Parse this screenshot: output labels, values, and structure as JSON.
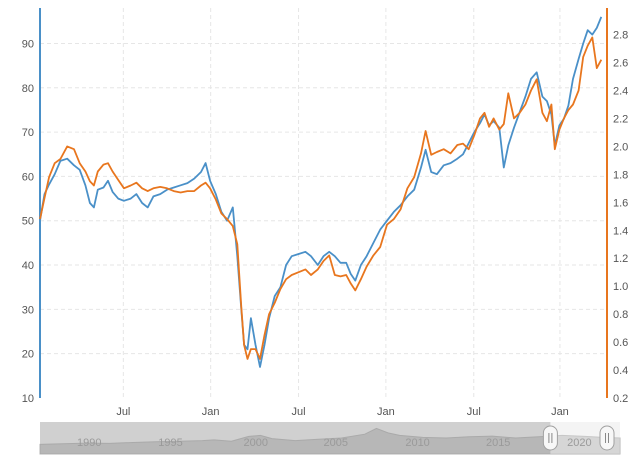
{
  "chart_data": {
    "type": "line",
    "title": "",
    "xlabel": "",
    "grid": true,
    "left_axis": {
      "ylim": [
        10,
        98
      ],
      "ticks": [
        "10",
        "20",
        "30",
        "40",
        "50",
        "60",
        "70",
        "80",
        "90"
      ],
      "color": "#4a90c8"
    },
    "right_axis": {
      "ylim": [
        0.2,
        2.99
      ],
      "ticks": [
        "0.2",
        "0.4",
        "0.6",
        "0.8",
        "1.0",
        "1.2",
        "1.4",
        "1.6",
        "1.8",
        "2.0",
        "2.2",
        "2.4",
        "2.6",
        "2.8"
      ],
      "color": "#e8761e"
    },
    "x_ticks": [
      {
        "label": "Jul",
        "t": 0.147
      },
      {
        "label": "Jan",
        "t": 0.301
      },
      {
        "label": "Jul",
        "t": 0.456
      },
      {
        "label": "Jan",
        "t": 0.61
      },
      {
        "label": "Jul",
        "t": 0.765
      },
      {
        "label": "Jan",
        "t": 0.917
      }
    ],
    "series": [
      {
        "axis": "left",
        "color": "#4a90c8",
        "points": [
          [
            0.0,
            50.0
          ],
          [
            0.008,
            56.0
          ],
          [
            0.016,
            58.2
          ],
          [
            0.026,
            60.5
          ],
          [
            0.036,
            63.5
          ],
          [
            0.048,
            64.0
          ],
          [
            0.06,
            62.5
          ],
          [
            0.07,
            61.5
          ],
          [
            0.08,
            58.0
          ],
          [
            0.088,
            54.0
          ],
          [
            0.095,
            53.0
          ],
          [
            0.102,
            57.0
          ],
          [
            0.112,
            57.5
          ],
          [
            0.12,
            59.0
          ],
          [
            0.128,
            56.5
          ],
          [
            0.138,
            55.0
          ],
          [
            0.148,
            54.5
          ],
          [
            0.16,
            55.0
          ],
          [
            0.17,
            56.0
          ],
          [
            0.18,
            54.0
          ],
          [
            0.19,
            53.0
          ],
          [
            0.2,
            55.5
          ],
          [
            0.212,
            56.0
          ],
          [
            0.224,
            57.0
          ],
          [
            0.236,
            57.5
          ],
          [
            0.248,
            58.0
          ],
          [
            0.26,
            58.5
          ],
          [
            0.272,
            59.5
          ],
          [
            0.284,
            61.0
          ],
          [
            0.292,
            63.0
          ],
          [
            0.3,
            59.0
          ],
          [
            0.31,
            56.0
          ],
          [
            0.32,
            52.0
          ],
          [
            0.33,
            50.0
          ],
          [
            0.34,
            53.0
          ],
          [
            0.348,
            42.0
          ],
          [
            0.355,
            30.0
          ],
          [
            0.36,
            22.0
          ],
          [
            0.366,
            21.0
          ],
          [
            0.372,
            28.0
          ],
          [
            0.38,
            22.0
          ],
          [
            0.388,
            17.0
          ],
          [
            0.396,
            22.0
          ],
          [
            0.404,
            28.0
          ],
          [
            0.414,
            33.0
          ],
          [
            0.424,
            35.0
          ],
          [
            0.434,
            40.0
          ],
          [
            0.444,
            42.0
          ],
          [
            0.456,
            42.5
          ],
          [
            0.468,
            43.0
          ],
          [
            0.478,
            42.0
          ],
          [
            0.49,
            40.0
          ],
          [
            0.5,
            42.0
          ],
          [
            0.51,
            43.0
          ],
          [
            0.52,
            42.0
          ],
          [
            0.53,
            40.5
          ],
          [
            0.54,
            40.5
          ],
          [
            0.548,
            38.0
          ],
          [
            0.556,
            36.5
          ],
          [
            0.566,
            40.0
          ],
          [
            0.576,
            42.0
          ],
          [
            0.588,
            45.0
          ],
          [
            0.6,
            48.0
          ],
          [
            0.612,
            50.0
          ],
          [
            0.624,
            52.0
          ],
          [
            0.636,
            53.5
          ],
          [
            0.648,
            55.5
          ],
          [
            0.66,
            57.0
          ],
          [
            0.672,
            62.0
          ],
          [
            0.68,
            66.0
          ],
          [
            0.69,
            61.0
          ],
          [
            0.7,
            60.5
          ],
          [
            0.712,
            62.5
          ],
          [
            0.724,
            63.0
          ],
          [
            0.736,
            64.0
          ],
          [
            0.746,
            65.0
          ],
          [
            0.756,
            67.5
          ],
          [
            0.766,
            70.0
          ],
          [
            0.776,
            72.0
          ],
          [
            0.784,
            74.0
          ],
          [
            0.792,
            71.5
          ],
          [
            0.8,
            72.5
          ],
          [
            0.81,
            71.0
          ],
          [
            0.818,
            62.0
          ],
          [
            0.826,
            67.0
          ],
          [
            0.836,
            71.0
          ],
          [
            0.846,
            74.5
          ],
          [
            0.856,
            78.0
          ],
          [
            0.866,
            82.0
          ],
          [
            0.876,
            83.5
          ],
          [
            0.886,
            78.0
          ],
          [
            0.894,
            77.0
          ],
          [
            0.902,
            74.0
          ],
          [
            0.908,
            67.0
          ],
          [
            0.916,
            71.5
          ],
          [
            0.924,
            73.0
          ],
          [
            0.932,
            76.0
          ],
          [
            0.94,
            82.0
          ],
          [
            0.95,
            86.5
          ],
          [
            0.958,
            90.0
          ],
          [
            0.966,
            93.0
          ],
          [
            0.974,
            92.0
          ],
          [
            0.982,
            93.5
          ],
          [
            0.99,
            96.0
          ]
        ]
      },
      {
        "axis": "right",
        "color": "#e8761e",
        "points": [
          [
            0.0,
            1.48
          ],
          [
            0.008,
            1.63
          ],
          [
            0.016,
            1.78
          ],
          [
            0.026,
            1.88
          ],
          [
            0.036,
            1.91
          ],
          [
            0.048,
            2.0
          ],
          [
            0.06,
            1.98
          ],
          [
            0.07,
            1.88
          ],
          [
            0.08,
            1.82
          ],
          [
            0.088,
            1.75
          ],
          [
            0.095,
            1.72
          ],
          [
            0.102,
            1.82
          ],
          [
            0.112,
            1.87
          ],
          [
            0.12,
            1.88
          ],
          [
            0.128,
            1.82
          ],
          [
            0.138,
            1.76
          ],
          [
            0.148,
            1.7
          ],
          [
            0.16,
            1.72
          ],
          [
            0.17,
            1.74
          ],
          [
            0.18,
            1.7
          ],
          [
            0.19,
            1.68
          ],
          [
            0.2,
            1.7
          ],
          [
            0.212,
            1.71
          ],
          [
            0.224,
            1.7
          ],
          [
            0.236,
            1.68
          ],
          [
            0.248,
            1.67
          ],
          [
            0.26,
            1.68
          ],
          [
            0.272,
            1.68
          ],
          [
            0.284,
            1.72
          ],
          [
            0.292,
            1.74
          ],
          [
            0.3,
            1.7
          ],
          [
            0.31,
            1.62
          ],
          [
            0.32,
            1.52
          ],
          [
            0.33,
            1.48
          ],
          [
            0.34,
            1.43
          ],
          [
            0.348,
            1.3
          ],
          [
            0.355,
            0.85
          ],
          [
            0.36,
            0.58
          ],
          [
            0.366,
            0.48
          ],
          [
            0.372,
            0.55
          ],
          [
            0.38,
            0.55
          ],
          [
            0.388,
            0.48
          ],
          [
            0.396,
            0.65
          ],
          [
            0.404,
            0.8
          ],
          [
            0.414,
            0.88
          ],
          [
            0.424,
            0.98
          ],
          [
            0.434,
            1.05
          ],
          [
            0.444,
            1.08
          ],
          [
            0.456,
            1.1
          ],
          [
            0.468,
            1.12
          ],
          [
            0.478,
            1.08
          ],
          [
            0.49,
            1.12
          ],
          [
            0.5,
            1.18
          ],
          [
            0.51,
            1.22
          ],
          [
            0.52,
            1.08
          ],
          [
            0.53,
            1.07
          ],
          [
            0.54,
            1.08
          ],
          [
            0.548,
            1.02
          ],
          [
            0.556,
            0.97
          ],
          [
            0.566,
            1.05
          ],
          [
            0.576,
            1.14
          ],
          [
            0.588,
            1.22
          ],
          [
            0.6,
            1.28
          ],
          [
            0.612,
            1.44
          ],
          [
            0.624,
            1.48
          ],
          [
            0.636,
            1.55
          ],
          [
            0.648,
            1.7
          ],
          [
            0.66,
            1.78
          ],
          [
            0.672,
            1.95
          ],
          [
            0.68,
            2.11
          ],
          [
            0.69,
            1.94
          ],
          [
            0.7,
            1.96
          ],
          [
            0.712,
            1.98
          ],
          [
            0.724,
            1.95
          ],
          [
            0.736,
            2.01
          ],
          [
            0.746,
            2.02
          ],
          [
            0.756,
            1.98
          ],
          [
            0.766,
            2.08
          ],
          [
            0.776,
            2.2
          ],
          [
            0.784,
            2.24
          ],
          [
            0.792,
            2.14
          ],
          [
            0.8,
            2.2
          ],
          [
            0.81,
            2.12
          ],
          [
            0.818,
            2.16
          ],
          [
            0.826,
            2.38
          ],
          [
            0.836,
            2.2
          ],
          [
            0.846,
            2.24
          ],
          [
            0.856,
            2.3
          ],
          [
            0.866,
            2.4
          ],
          [
            0.876,
            2.48
          ],
          [
            0.886,
            2.24
          ],
          [
            0.894,
            2.18
          ],
          [
            0.902,
            2.3
          ],
          [
            0.908,
            1.98
          ],
          [
            0.916,
            2.12
          ],
          [
            0.924,
            2.2
          ],
          [
            0.932,
            2.26
          ],
          [
            0.94,
            2.3
          ],
          [
            0.95,
            2.4
          ],
          [
            0.958,
            2.64
          ],
          [
            0.966,
            2.72
          ],
          [
            0.974,
            2.78
          ],
          [
            0.982,
            2.56
          ],
          [
            0.99,
            2.62
          ]
        ]
      }
    ]
  },
  "navigator": {
    "labels": [
      {
        "text": "1990",
        "t": 0.085
      },
      {
        "text": "1995",
        "t": 0.225
      },
      {
        "text": "2000",
        "t": 0.372
      },
      {
        "text": "2005",
        "t": 0.51
      },
      {
        "text": "2010",
        "t": 0.651
      },
      {
        "text": "2015",
        "t": 0.79
      },
      {
        "text": "2020",
        "t": 0.93
      }
    ],
    "profile": [
      [
        0.0,
        0.3
      ],
      [
        0.04,
        0.32
      ],
      [
        0.08,
        0.34
      ],
      [
        0.12,
        0.33
      ],
      [
        0.16,
        0.36
      ],
      [
        0.2,
        0.38
      ],
      [
        0.24,
        0.4
      ],
      [
        0.28,
        0.42
      ],
      [
        0.3,
        0.44
      ],
      [
        0.33,
        0.4
      ],
      [
        0.36,
        0.55
      ],
      [
        0.38,
        0.58
      ],
      [
        0.4,
        0.48
      ],
      [
        0.44,
        0.42
      ],
      [
        0.48,
        0.46
      ],
      [
        0.52,
        0.5
      ],
      [
        0.56,
        0.62
      ],
      [
        0.58,
        0.8
      ],
      [
        0.6,
        0.66
      ],
      [
        0.62,
        0.58
      ],
      [
        0.66,
        0.52
      ],
      [
        0.7,
        0.5
      ],
      [
        0.74,
        0.54
      ],
      [
        0.78,
        0.56
      ],
      [
        0.82,
        0.5
      ],
      [
        0.86,
        0.54
      ],
      [
        0.9,
        0.58
      ],
      [
        0.94,
        0.55
      ],
      [
        0.97,
        0.52
      ],
      [
        1.0,
        0.5
      ]
    ],
    "selection": [
      0.88,
      1.0
    ]
  }
}
